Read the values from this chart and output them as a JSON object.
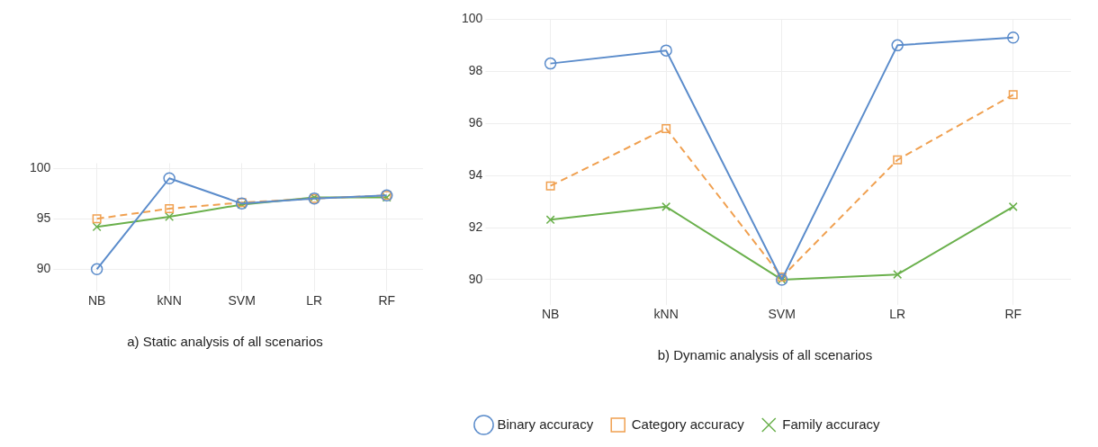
{
  "chart_data": [
    {
      "type": "line",
      "title": "a) Static analysis of all scenarios",
      "categories": [
        "NB",
        "kNN",
        "SVM",
        "LR",
        "RF"
      ],
      "ylim": [
        88.5,
        100.5
      ],
      "yticks": [
        90,
        95,
        100
      ],
      "grid": true,
      "legend": false,
      "series": [
        {
          "color": "#5b8ccb",
          "marker": "circle",
          "line_style": "solid",
          "values": [
            90,
            99,
            96.5,
            97,
            97.3
          ]
        },
        {
          "color": "#f0a050",
          "marker": "square",
          "line_style": "dashed",
          "values": [
            95,
            96,
            96.6,
            97,
            97.3
          ]
        },
        {
          "color": "#6ab04c",
          "marker": "cross",
          "line_style": "solid",
          "values": [
            94.2,
            95.2,
            96.4,
            97.1,
            97.1
          ]
        }
      ]
    },
    {
      "type": "line",
      "title": "b) Dynamic analysis of all scenarios",
      "categories": [
        "NB",
        "kNN",
        "SVM",
        "LR",
        "RF"
      ],
      "ylim": [
        89.3,
        100
      ],
      "yticks": [
        90,
        92,
        94,
        96,
        98,
        100
      ],
      "grid": true,
      "legend": "bottom",
      "series": [
        {
          "name": "Binary accuracy",
          "color": "#5b8ccb",
          "marker": "circle",
          "line_style": "solid",
          "values": [
            98.3,
            98.8,
            90,
            99,
            99.3
          ]
        },
        {
          "name": "Category accuracy",
          "color": "#f0a050",
          "marker": "square",
          "line_style": "dashed",
          "values": [
            93.6,
            95.8,
            90.1,
            94.6,
            97.1
          ]
        },
        {
          "name": "Family accuracy",
          "color": "#6ab04c",
          "marker": "cross",
          "line_style": "solid",
          "values": [
            92.3,
            92.8,
            90,
            90.2,
            92.8
          ]
        }
      ]
    }
  ]
}
